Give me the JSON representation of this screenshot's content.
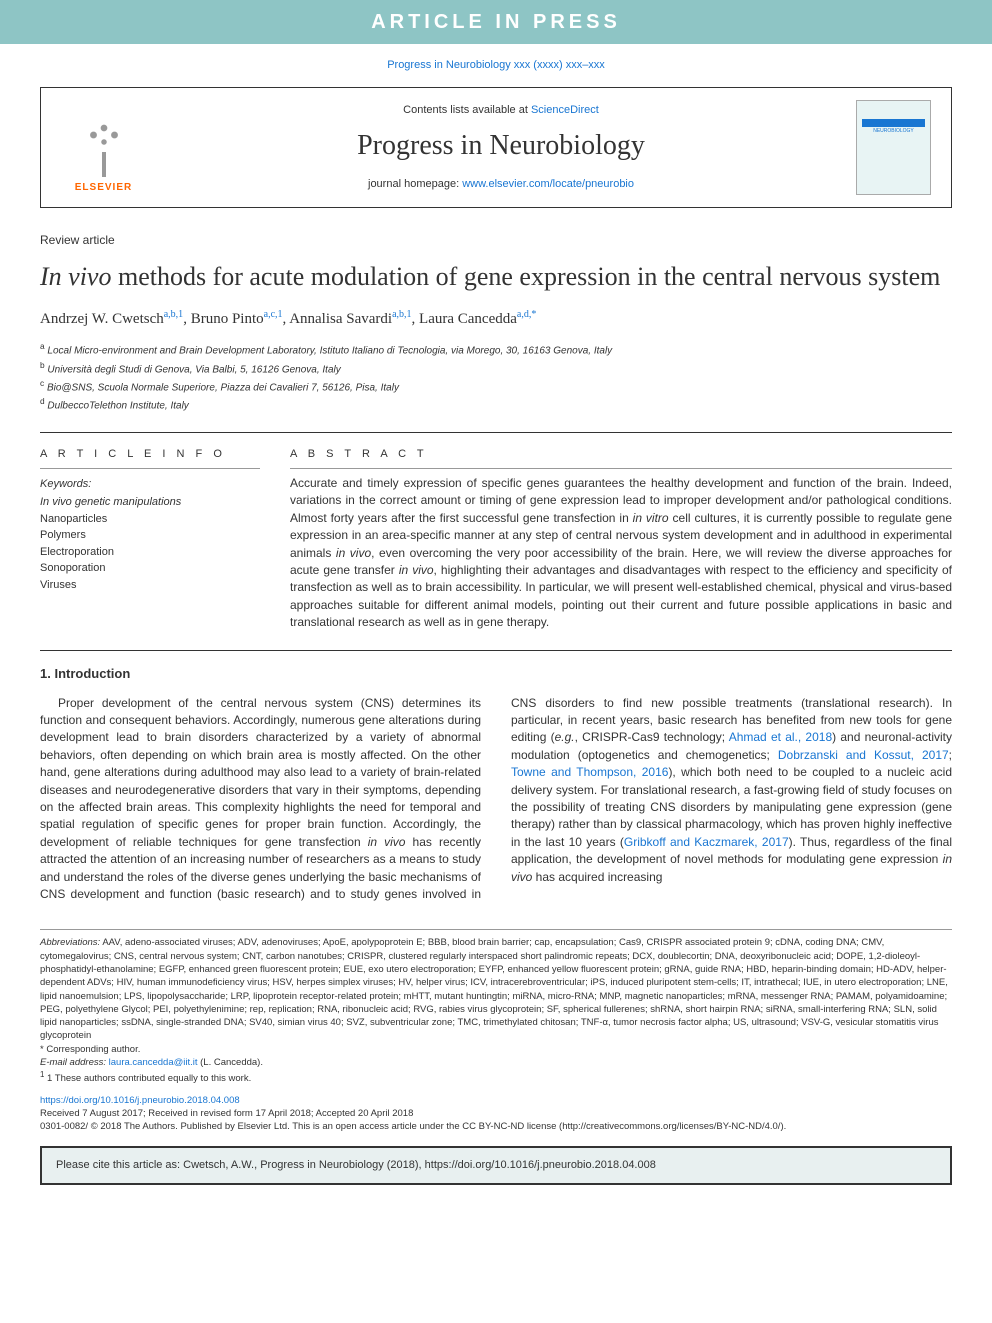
{
  "banner": {
    "text": "ARTICLE IN PRESS",
    "background": "#8ec5c5",
    "text_color": "#ffffff"
  },
  "journal_ref": "Progress in Neurobiology xxx (xxxx) xxx–xxx",
  "header": {
    "publisher_logo_text": "ELSEVIER",
    "publisher_logo_color": "#ff6600",
    "contents_text": "Contents lists available at ",
    "contents_link": "ScienceDirect",
    "journal_name": "Progress in Neurobiology",
    "homepage_prefix": "journal homepage: ",
    "homepage_url": "www.elsevier.com/locate/pneurobio",
    "cover_title": "PROGRESS IN NEUROBIOLOGY"
  },
  "article": {
    "type": "Review article",
    "title_italic": "In vivo",
    "title_rest": " methods for acute modulation of gene expression in the central nervous system",
    "authors_html": "Andrzej W. Cwetsch<sup>a,b,1</sup>, Bruno Pinto<sup>a,c,1</sup>, Annalisa Savardi<sup>a,b,1</sup>, Laura Cancedda<sup>a,d,*</sup>",
    "affiliations": [
      "a Local Micro-environment and Brain Development Laboratory, Istituto Italiano di Tecnologia, via Morego, 30, 16163 Genova, Italy",
      "b Università degli Studi di Genova, Via Balbi, 5, 16126 Genova, Italy",
      "c Bio@SNS, Scuola Normale Superiore, Piazza dei Cavalieri 7, 56126, Pisa, Italy",
      "d DulbeccoTelethon Institute, Italy"
    ]
  },
  "info": {
    "article_info_label": "A R T I C L E  I N F O",
    "keywords_label": "Keywords:",
    "keywords": [
      "In vivo genetic manipulations",
      "Nanoparticles",
      "Polymers",
      "Electroporation",
      "Sonoporation",
      "Viruses"
    ]
  },
  "abstract": {
    "label": "A B S T R A C T",
    "text": "Accurate and timely expression of specific genes guarantees the healthy development and function of the brain. Indeed, variations in the correct amount or timing of gene expression lead to improper development and/or pathological conditions. Almost forty years after the first successful gene transfection in in vitro cell cultures, it is currently possible to regulate gene expression in an area-specific manner at any step of central nervous system development and in adulthood in experimental animals in vivo, even overcoming the very poor accessibility of the brain. Here, we will review the diverse approaches for acute gene transfer in vivo, highlighting their advantages and disadvantages with respect to the efficiency and specificity of transfection as well as to brain accessibility. In particular, we will present well-established chemical, physical and virus-based approaches suitable for different animal models, pointing out their current and future possible applications in basic and translational research as well as in gene therapy."
  },
  "intro": {
    "heading": "1. Introduction",
    "para1": "Proper development of the central nervous system (CNS) determines its function and consequent behaviors. Accordingly, numerous gene alterations during development lead to brain disorders characterized by a variety of abnormal behaviors, often depending on which brain area is mostly affected. On the other hand, gene alterations during adulthood may also lead to a variety of brain-related diseases and neurodegenerative disorders that vary in their symptoms, depending on the affected brain areas. This complexity highlights the need for temporal and spatial regulation of specific genes for proper brain function. Accordingly, the development of reliable techniques for gene transfection in vivo has recently attracted the attention of an increasing number of researchers as a means to study and understand the roles of the ",
    "para2_pre": "diverse genes underlying the basic mechanisms of CNS development and function (basic research) and to study genes involved in CNS disorders to find new possible treatments (translational research). In particular, in recent years, basic research has benefited from new tools for gene editing (e.g., CRISPR-Cas9 technology; ",
    "cite1": "Ahmad et al., 2018",
    "para2_mid1": ") and neuronal-activity modulation (optogenetics and chemogenetics; ",
    "cite2": "Dobrzanski and Kossut, 2017",
    "para2_sep": "; ",
    "cite3": "Towne and Thompson, 2016",
    "para2_mid2": "), which both need to be coupled to a nucleic acid delivery system. For translational research, a fast-growing field of study focuses on the possibility of treating CNS disorders by manipulating gene expression (gene therapy) rather than by classical pharmacology, which has proven highly ineffective in the last 10 years (",
    "cite4": "Gribkoff and Kaczmarek, 2017",
    "para2_end": "). Thus, regardless of the final application, the development of novel methods for modulating gene expression in vivo has acquired increasing"
  },
  "footer": {
    "abbrev_label": "Abbreviations:",
    "abbrev_text": " AAV, adeno-associated viruses; ADV, adenoviruses; ApoE, apolypoprotein E; BBB, blood brain barrier; cap, encapsulation; Cas9, CRISPR associated protein 9; cDNA, coding DNA; CMV, cytomegalovirus; CNS, central nervous system; CNT, carbon nanotubes; CRISPR, clustered regularly interspaced short palindromic repeats; DCX, doublecortin; DNA, deoxyribonucleic acid; DOPE, 1,2-dioleoyl-phosphatidyl-ethanolamine; EGFP, enhanced green fluorescent protein; EUE, exo utero electroporation; EYFP, enhanced yellow fluorescent protein; gRNA, guide RNA; HBD, heparin-binding domain; HD-ADV, helper-dependent ADVs; HIV, human immunodeficiency virus; HSV, herpes simplex viruses; HV, helper virus; ICV, intracerebroventricular; iPS, induced pluripotent stem-cells; IT, intrathecal; IUE, in utero electroporation; LNE, lipid nanoemulsion; LPS, lipopolysaccharide; LRP, lipoprotein receptor-related protein; mHTT, mutant huntingtin; miRNA, micro-RNA; MNP, magnetic nanoparticles; mRNA, messenger RNA; PAMAM, polyamidoamine; PEG, polyethylene Glycol; PEI, polyethylenimine; rep, replication; RNA, ribonucleic acid; RVG, rabies virus glycoprotein; SF, spherical fullerenes; shRNA, short hairpin RNA; siRNA, small-interfering RNA; SLN, solid lipid nanoparticles; ssDNA, single-stranded DNA; SV40, simian virus 40; SVZ, subventricular zone; TMC, trimethylated chitosan; TNF-α, tumor necrosis factor alpha; US, ultrasound; VSV-G, vesicular stomatitis virus glycoprotein",
    "corresponding": "* Corresponding author.",
    "email_label": "E-mail address: ",
    "email": "laura.cancedda@iit.it",
    "email_suffix": " (L. Cancedda).",
    "equal_contrib": "1 These authors contributed equally to this work.",
    "doi": "https://doi.org/10.1016/j.pneurobio.2018.04.008",
    "received": "Received 7 August 2017; Received in revised form 17 April 2018; Accepted 20 April 2018",
    "copyright": "0301-0082/ © 2018 The Authors. Published by Elsevier Ltd. This is an open access article under the CC BY-NC-ND license (http://creativecommons.org/licenses/BY-NC-ND/4.0/)."
  },
  "cite_box": {
    "text": "Please cite this article as: Cwetsch, A.W., Progress in Neurobiology (2018), https://doi.org/10.1016/j.pneurobio.2018.04.008"
  },
  "colors": {
    "link": "#1976d2",
    "banner_bg": "#8ec5c5",
    "cite_box_bg": "#e8f0f0",
    "elsevier": "#ff6600"
  }
}
